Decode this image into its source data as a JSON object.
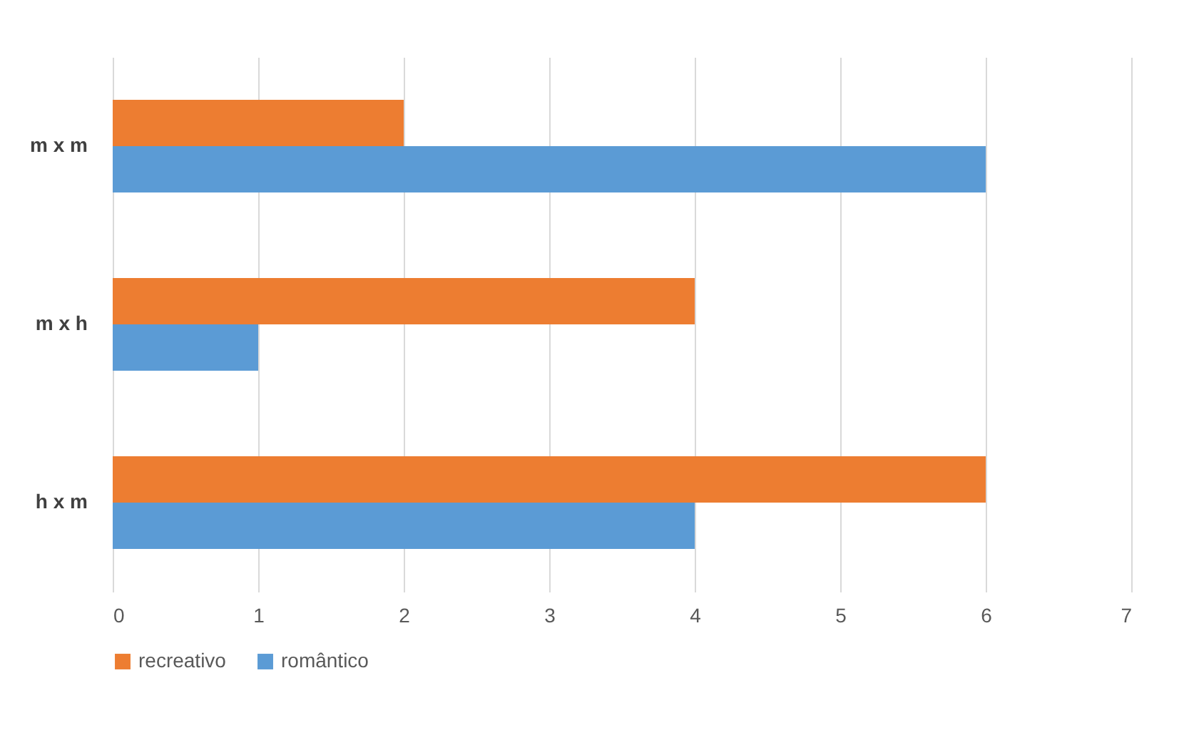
{
  "chart_data": {
    "type": "bar",
    "orientation": "horizontal",
    "categories": [
      "m x m",
      "m x h",
      "h x m"
    ],
    "series": [
      {
        "name": "recreativo",
        "color": "#ed7d31",
        "values": [
          2,
          4,
          6
        ]
      },
      {
        "name": "romântico",
        "color": "#5b9bd5",
        "values": [
          6,
          1,
          4
        ]
      }
    ],
    "xlim": [
      0,
      7
    ],
    "xticks": [
      0,
      1,
      2,
      3,
      4,
      5,
      6,
      7
    ],
    "grid": "x",
    "legend": "bottom"
  }
}
